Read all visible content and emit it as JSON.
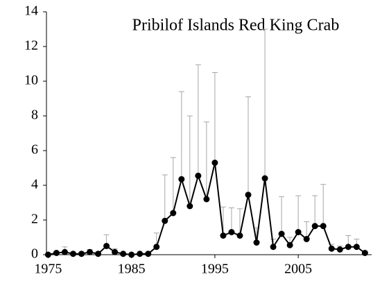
{
  "chart_data": {
    "type": "line",
    "title": "Pribilof Islands Red King Crab",
    "x": [
      1975,
      1976,
      1977,
      1978,
      1979,
      1980,
      1981,
      1982,
      1983,
      1984,
      1985,
      1986,
      1987,
      1988,
      1989,
      1990,
      1991,
      1992,
      1993,
      1994,
      1995,
      1996,
      1997,
      1998,
      1999,
      2000,
      2001,
      2002,
      2003,
      2004,
      2005,
      2006,
      2007,
      2008,
      2009,
      2010,
      2011,
      2012,
      2013
    ],
    "values": [
      0.0,
      0.1,
      0.15,
      0.05,
      0.05,
      0.15,
      0.05,
      0.5,
      0.15,
      0.05,
      0.0,
      0.05,
      0.05,
      0.45,
      1.95,
      2.4,
      4.35,
      2.8,
      4.55,
      3.2,
      5.3,
      1.1,
      1.3,
      1.1,
      3.45,
      0.7,
      4.4,
      0.45,
      1.2,
      0.55,
      1.3,
      0.9,
      1.65,
      1.65,
      0.35,
      0.3,
      0.45,
      0.45,
      0.1
    ],
    "errors": [
      0.05,
      0.1,
      0.3,
      0.1,
      0.1,
      0.15,
      0.1,
      0.65,
      0.2,
      0.05,
      0.05,
      0.05,
      0.1,
      0.8,
      2.65,
      3.2,
      5.05,
      5.2,
      6.4,
      4.45,
      5.2,
      1.65,
      1.4,
      1.55,
      5.65,
      0.85,
      8.6,
      0.45,
      2.15,
      0.45,
      2.1,
      1.0,
      1.75,
      2.4,
      0.25,
      0.2,
      0.65,
      0.45,
      0.1
    ],
    "color": "#000000",
    "error_color": "#a6a6a6",
    "xlim": [
      1974.8,
      2013.8
    ],
    "xticks": [
      1975,
      1985,
      1995,
      2005
    ],
    "ylim": [
      0,
      14
    ],
    "yticks": [
      0,
      2,
      4,
      6,
      8,
      10,
      12,
      14
    ]
  }
}
